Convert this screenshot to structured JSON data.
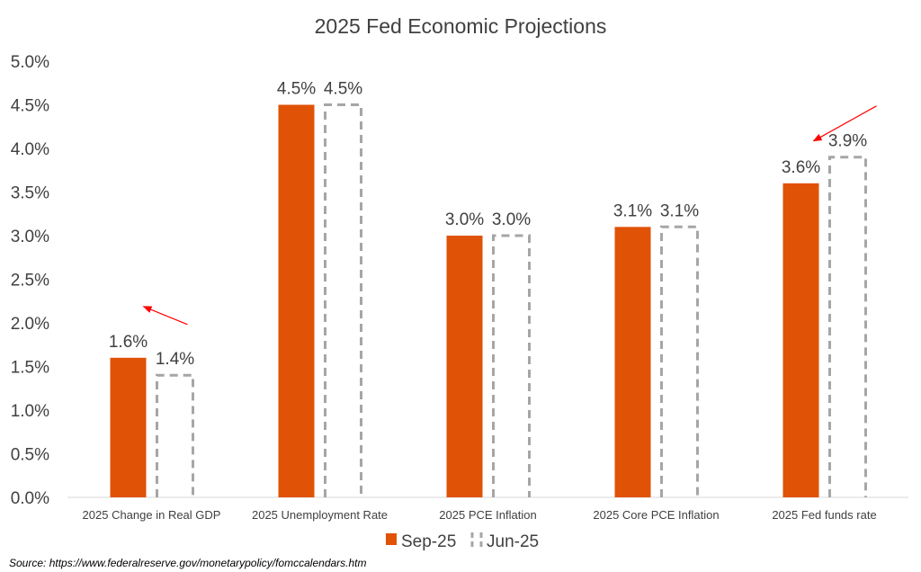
{
  "chart_data": {
    "type": "bar",
    "title": "2025 Fed Economic Projections",
    "categories": [
      "2025 Change in Real GDP",
      "2025 Unemployment Rate",
      "2025 PCE Inflation",
      "2025 Core PCE Inflation",
      "2025 Fed funds rate"
    ],
    "series": [
      {
        "name": "Sep-25",
        "values": [
          1.6,
          4.5,
          3.0,
          3.1,
          3.6
        ],
        "labels": [
          "1.6%",
          "4.5%",
          "3.0%",
          "3.1%",
          "3.6%"
        ],
        "color": "#e05206",
        "style": "solid"
      },
      {
        "name": "Jun-25",
        "values": [
          1.4,
          4.5,
          3.0,
          3.1,
          3.9
        ],
        "labels": [
          "1.4%",
          "4.5%",
          "3.0%",
          "3.1%",
          "3.9%"
        ],
        "color": "#a6a6a6",
        "style": "dashed"
      }
    ],
    "ylim": [
      0,
      5
    ],
    "yticks": [
      "0.0%",
      "0.5%",
      "1.0%",
      "1.5%",
      "2.0%",
      "2.5%",
      "3.0%",
      "3.5%",
      "4.0%",
      "4.5%",
      "5.0%"
    ],
    "xlabel": "",
    "ylabel": "",
    "grid": false,
    "legend_position": "bottom",
    "annotations": [
      {
        "type": "arrow",
        "category_index": 0,
        "direction": "up",
        "color": "#ff0000"
      },
      {
        "type": "arrow",
        "category_index": 4,
        "direction": "down",
        "color": "#ff0000"
      }
    ]
  },
  "source_text": "Source:  https://www.federalreserve.gov/monetarypolicy/fomccalendars.htm"
}
